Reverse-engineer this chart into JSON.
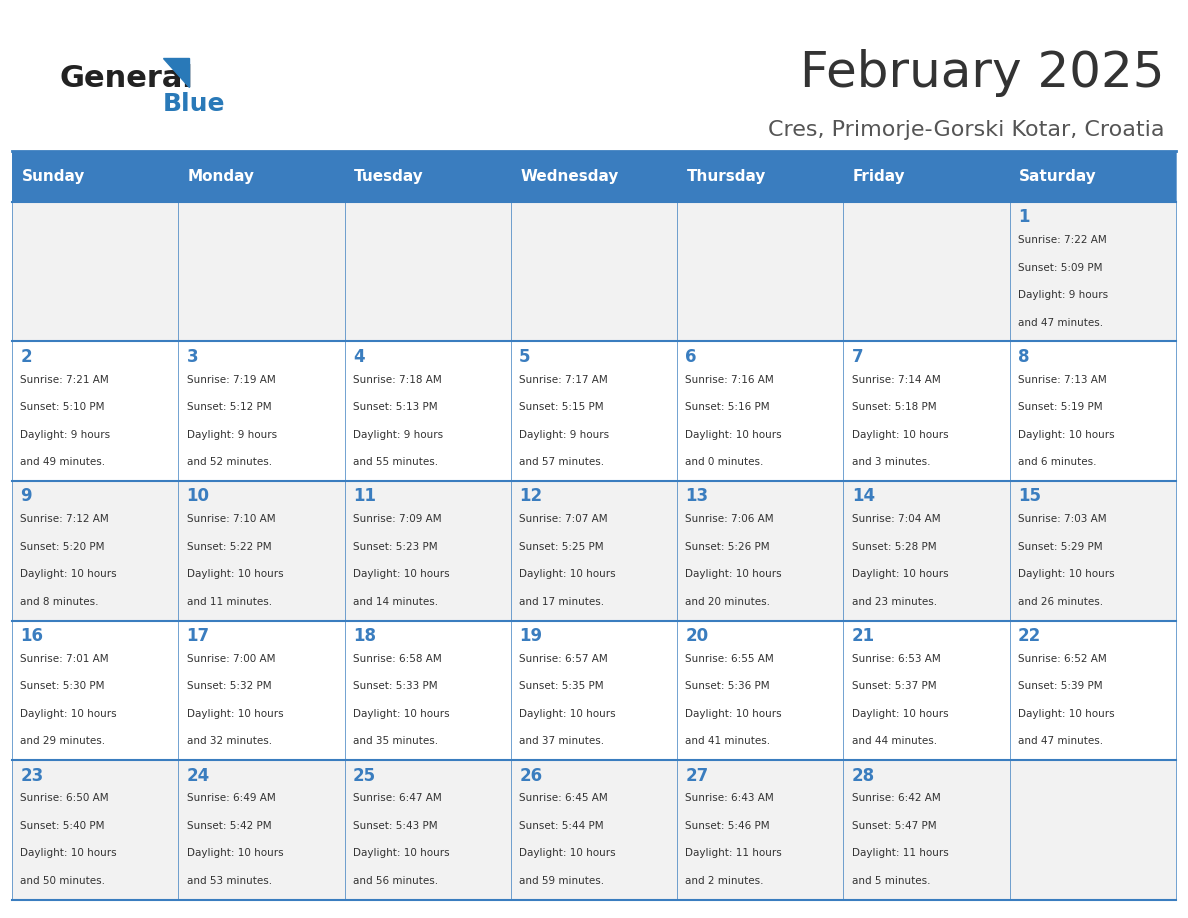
{
  "title": "February 2025",
  "subtitle": "Cres, Primorje-Gorski Kotar, Croatia",
  "days_of_week": [
    "Sunday",
    "Monday",
    "Tuesday",
    "Wednesday",
    "Thursday",
    "Friday",
    "Saturday"
  ],
  "header_bg": "#3a7dbf",
  "header_text": "#ffffff",
  "cell_bg_odd": "#f2f2f2",
  "cell_bg_even": "#ffffff",
  "title_color": "#333333",
  "subtitle_color": "#555555",
  "day_number_color": "#3a7dbf",
  "cell_text_color": "#333333",
  "logo_general_color": "#222222",
  "logo_blue_color": "#2979b8",
  "calendar_data": [
    {
      "day": 1,
      "col": 6,
      "row": 0,
      "sunrise": "7:22 AM",
      "sunset": "5:09 PM",
      "daylight": "9 hours and 47 minutes."
    },
    {
      "day": 2,
      "col": 0,
      "row": 1,
      "sunrise": "7:21 AM",
      "sunset": "5:10 PM",
      "daylight": "9 hours and 49 minutes."
    },
    {
      "day": 3,
      "col": 1,
      "row": 1,
      "sunrise": "7:19 AM",
      "sunset": "5:12 PM",
      "daylight": "9 hours and 52 minutes."
    },
    {
      "day": 4,
      "col": 2,
      "row": 1,
      "sunrise": "7:18 AM",
      "sunset": "5:13 PM",
      "daylight": "9 hours and 55 minutes."
    },
    {
      "day": 5,
      "col": 3,
      "row": 1,
      "sunrise": "7:17 AM",
      "sunset": "5:15 PM",
      "daylight": "9 hours and 57 minutes."
    },
    {
      "day": 6,
      "col": 4,
      "row": 1,
      "sunrise": "7:16 AM",
      "sunset": "5:16 PM",
      "daylight": "10 hours and 0 minutes."
    },
    {
      "day": 7,
      "col": 5,
      "row": 1,
      "sunrise": "7:14 AM",
      "sunset": "5:18 PM",
      "daylight": "10 hours and 3 minutes."
    },
    {
      "day": 8,
      "col": 6,
      "row": 1,
      "sunrise": "7:13 AM",
      "sunset": "5:19 PM",
      "daylight": "10 hours and 6 minutes."
    },
    {
      "day": 9,
      "col": 0,
      "row": 2,
      "sunrise": "7:12 AM",
      "sunset": "5:20 PM",
      "daylight": "10 hours and 8 minutes."
    },
    {
      "day": 10,
      "col": 1,
      "row": 2,
      "sunrise": "7:10 AM",
      "sunset": "5:22 PM",
      "daylight": "10 hours and 11 minutes."
    },
    {
      "day": 11,
      "col": 2,
      "row": 2,
      "sunrise": "7:09 AM",
      "sunset": "5:23 PM",
      "daylight": "10 hours and 14 minutes."
    },
    {
      "day": 12,
      "col": 3,
      "row": 2,
      "sunrise": "7:07 AM",
      "sunset": "5:25 PM",
      "daylight": "10 hours and 17 minutes."
    },
    {
      "day": 13,
      "col": 4,
      "row": 2,
      "sunrise": "7:06 AM",
      "sunset": "5:26 PM",
      "daylight": "10 hours and 20 minutes."
    },
    {
      "day": 14,
      "col": 5,
      "row": 2,
      "sunrise": "7:04 AM",
      "sunset": "5:28 PM",
      "daylight": "10 hours and 23 minutes."
    },
    {
      "day": 15,
      "col": 6,
      "row": 2,
      "sunrise": "7:03 AM",
      "sunset": "5:29 PM",
      "daylight": "10 hours and 26 minutes."
    },
    {
      "day": 16,
      "col": 0,
      "row": 3,
      "sunrise": "7:01 AM",
      "sunset": "5:30 PM",
      "daylight": "10 hours and 29 minutes."
    },
    {
      "day": 17,
      "col": 1,
      "row": 3,
      "sunrise": "7:00 AM",
      "sunset": "5:32 PM",
      "daylight": "10 hours and 32 minutes."
    },
    {
      "day": 18,
      "col": 2,
      "row": 3,
      "sunrise": "6:58 AM",
      "sunset": "5:33 PM",
      "daylight": "10 hours and 35 minutes."
    },
    {
      "day": 19,
      "col": 3,
      "row": 3,
      "sunrise": "6:57 AM",
      "sunset": "5:35 PM",
      "daylight": "10 hours and 37 minutes."
    },
    {
      "day": 20,
      "col": 4,
      "row": 3,
      "sunrise": "6:55 AM",
      "sunset": "5:36 PM",
      "daylight": "10 hours and 41 minutes."
    },
    {
      "day": 21,
      "col": 5,
      "row": 3,
      "sunrise": "6:53 AM",
      "sunset": "5:37 PM",
      "daylight": "10 hours and 44 minutes."
    },
    {
      "day": 22,
      "col": 6,
      "row": 3,
      "sunrise": "6:52 AM",
      "sunset": "5:39 PM",
      "daylight": "10 hours and 47 minutes."
    },
    {
      "day": 23,
      "col": 0,
      "row": 4,
      "sunrise": "6:50 AM",
      "sunset": "5:40 PM",
      "daylight": "10 hours and 50 minutes."
    },
    {
      "day": 24,
      "col": 1,
      "row": 4,
      "sunrise": "6:49 AM",
      "sunset": "5:42 PM",
      "daylight": "10 hours and 53 minutes."
    },
    {
      "day": 25,
      "col": 2,
      "row": 4,
      "sunrise": "6:47 AM",
      "sunset": "5:43 PM",
      "daylight": "10 hours and 56 minutes."
    },
    {
      "day": 26,
      "col": 3,
      "row": 4,
      "sunrise": "6:45 AM",
      "sunset": "5:44 PM",
      "daylight": "10 hours and 59 minutes."
    },
    {
      "day": 27,
      "col": 4,
      "row": 4,
      "sunrise": "6:43 AM",
      "sunset": "5:46 PM",
      "daylight": "11 hours and 2 minutes."
    },
    {
      "day": 28,
      "col": 5,
      "row": 4,
      "sunrise": "6:42 AM",
      "sunset": "5:47 PM",
      "daylight": "11 hours and 5 minutes."
    }
  ]
}
